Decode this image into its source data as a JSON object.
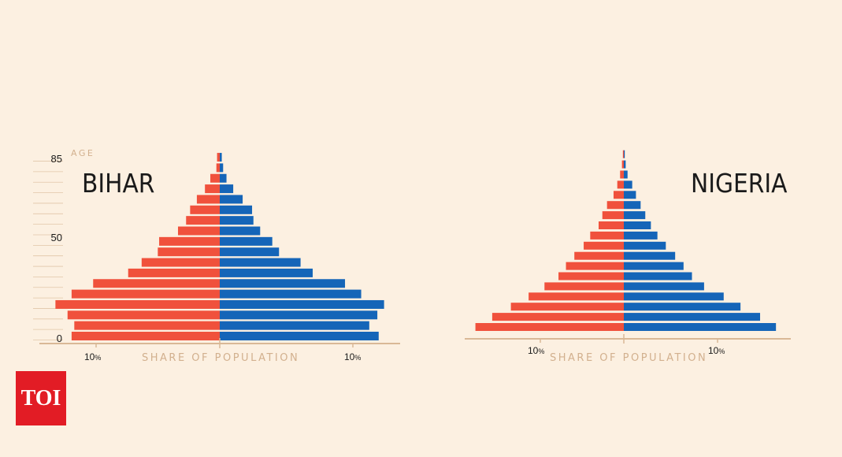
{
  "colors": {
    "background": "#fcf0e1",
    "left_bars": "#f0513c",
    "right_bars": "#1565b8",
    "axis": "#d9b896",
    "label_muted": "#d2b08e",
    "text": "#1a1a1a"
  },
  "logo": {
    "text": "TOI"
  },
  "chart_data": [
    {
      "type": "bar",
      "orientation": "horizontal-population-pyramid",
      "title": "BIHAR",
      "xlabel": "SHARE OF POPULATION",
      "ylabel": "AGE",
      "y_ticks": [
        "85",
        "50",
        "0"
      ],
      "x_tick_labels": {
        "number": "10",
        "unit": "%"
      },
      "xlim": [
        -13,
        13
      ],
      "series": [
        {
          "side": "left",
          "values": [
            11.0,
            10.8,
            11.3,
            12.2,
            11.0,
            9.4,
            6.8,
            5.8,
            4.6,
            4.5,
            3.1,
            2.5,
            2.2,
            1.7,
            1.1,
            0.7,
            0.25,
            0.2
          ]
        },
        {
          "side": "right",
          "values": [
            11.8,
            11.1,
            11.7,
            12.2,
            10.5,
            9.3,
            6.9,
            6.0,
            4.4,
            3.9,
            3.0,
            2.5,
            2.4,
            1.7,
            1.0,
            0.5,
            0.25,
            0.15
          ]
        }
      ]
    },
    {
      "type": "bar",
      "orientation": "horizontal-population-pyramid",
      "title": "NIGERIA",
      "xlabel": "SHARE OF POPULATION",
      "y_ticks": [],
      "x_tick_labels": {
        "number": "10",
        "unit": "%"
      },
      "xlim": [
        -17,
        17.5
      ],
      "series": [
        {
          "side": "left",
          "values": [
            15.9,
            14.1,
            12.1,
            10.2,
            8.5,
            7.0,
            6.2,
            5.3,
            4.3,
            3.6,
            2.7,
            2.3,
            1.8,
            1.1,
            0.7,
            0.4,
            0.2,
            0.1
          ]
        },
        {
          "side": "right",
          "values": [
            16.3,
            14.6,
            12.5,
            10.7,
            8.6,
            7.3,
            6.4,
            5.5,
            4.5,
            3.6,
            2.9,
            2.3,
            1.8,
            1.3,
            0.9,
            0.4,
            0.2,
            0.1
          ]
        }
      ]
    }
  ]
}
